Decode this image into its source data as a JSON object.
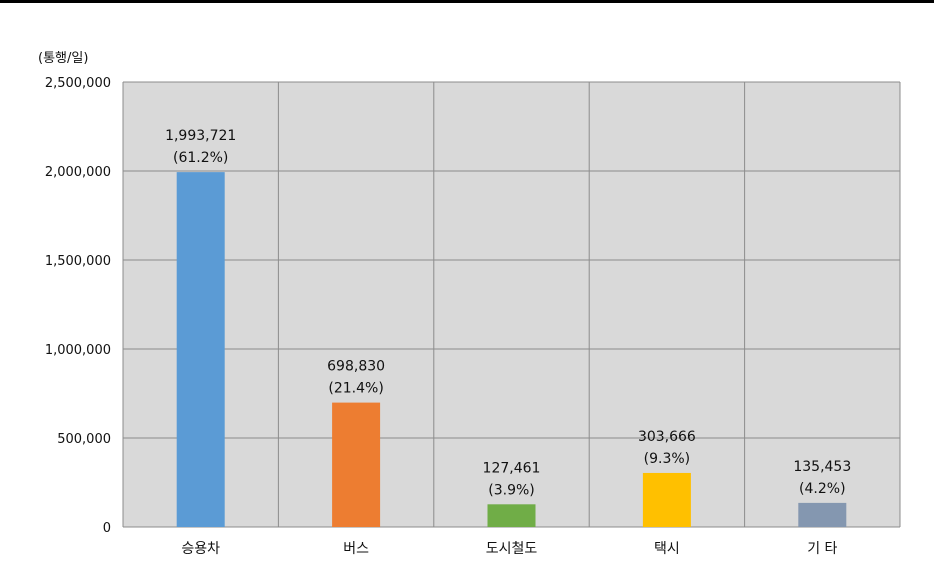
{
  "chart_data": {
    "type": "bar",
    "unit_label": "(통행/일)",
    "categories": [
      "승용차",
      "버스",
      "도시철도",
      "택시",
      "기 타"
    ],
    "values": [
      1993721,
      698830,
      127461,
      303666,
      135453
    ],
    "value_labels": [
      "1,993,721",
      "698,830",
      "127,461",
      "303,666",
      "135,453"
    ],
    "percent_labels": [
      "(61.2%)",
      "(21.4%)",
      "(3.9%)",
      "(9.3%)",
      "(4.2%)"
    ],
    "colors": [
      "#5b9bd5",
      "#ed7d31",
      "#70ad47",
      "#ffc000",
      "#8497b0"
    ],
    "ylim": [
      0,
      2500000
    ],
    "y_ticks": [
      0,
      500000,
      1000000,
      1500000,
      2000000,
      2500000
    ],
    "y_tick_labels": [
      "0",
      "500,000",
      "1,000,000",
      "1,500,000",
      "2,000,000",
      "2,500,000"
    ],
    "grid": true,
    "plot_background": "#d9d9d9",
    "grid_color": "#8c8c8c"
  }
}
